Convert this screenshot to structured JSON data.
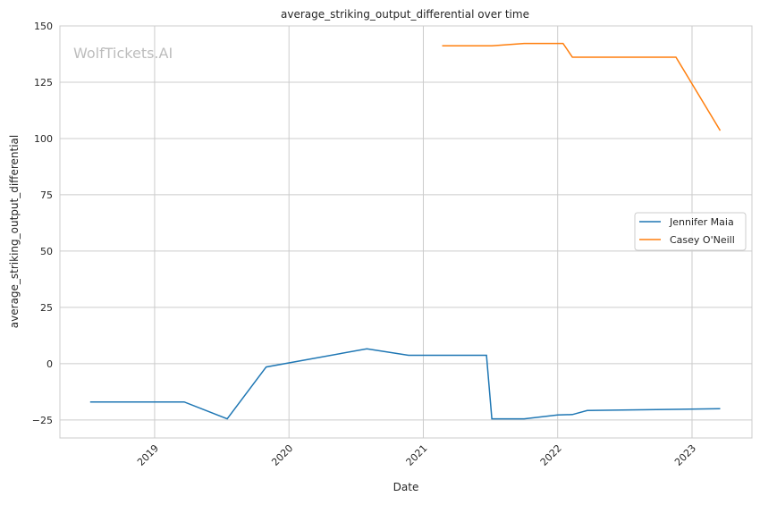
{
  "chart_data": {
    "type": "line",
    "title": "average_striking_output_differential over time",
    "xlabel": "Date",
    "ylabel": "average_striking_output_differential",
    "xlim": [
      2018.295,
      2023.446
    ],
    "ylim": [
      -33,
      150
    ],
    "xticks": [
      2019,
      2020,
      2021,
      2022,
      2023
    ],
    "xtick_labels": [
      "2019",
      "2020",
      "2021",
      "2022",
      "2023"
    ],
    "yticks": [
      -25,
      0,
      25,
      50,
      75,
      100,
      125,
      150
    ],
    "ytick_labels": [
      "−25",
      "0",
      "25",
      "50",
      "75",
      "100",
      "125",
      "150"
    ],
    "grid": true,
    "legend_position": "center-right",
    "watermark": "WolfTickets.AI",
    "series": [
      {
        "name": "Jennifer Maia",
        "color": "#1f77b4",
        "x": [
          2018.52,
          2019.22,
          2019.54,
          2019.83,
          2020.58,
          2020.89,
          2021.47,
          2021.51,
          2021.75,
          2022.0,
          2022.11,
          2022.22,
          2023.21
        ],
        "y": [
          -17,
          -17,
          -24.5,
          -1.5,
          6.6,
          3.7,
          3.7,
          -24.5,
          -24.5,
          -22.8,
          -22.6,
          -20.8,
          -20
        ]
      },
      {
        "name": "Casey O'Neill",
        "color": "#ff7f0e",
        "x": [
          2021.14,
          2021.51,
          2021.75,
          2022.04,
          2022.11,
          2022.88,
          2023.21
        ],
        "y": [
          141.2,
          141.2,
          142.2,
          142.2,
          136.1,
          136.1,
          103.5
        ]
      }
    ]
  }
}
